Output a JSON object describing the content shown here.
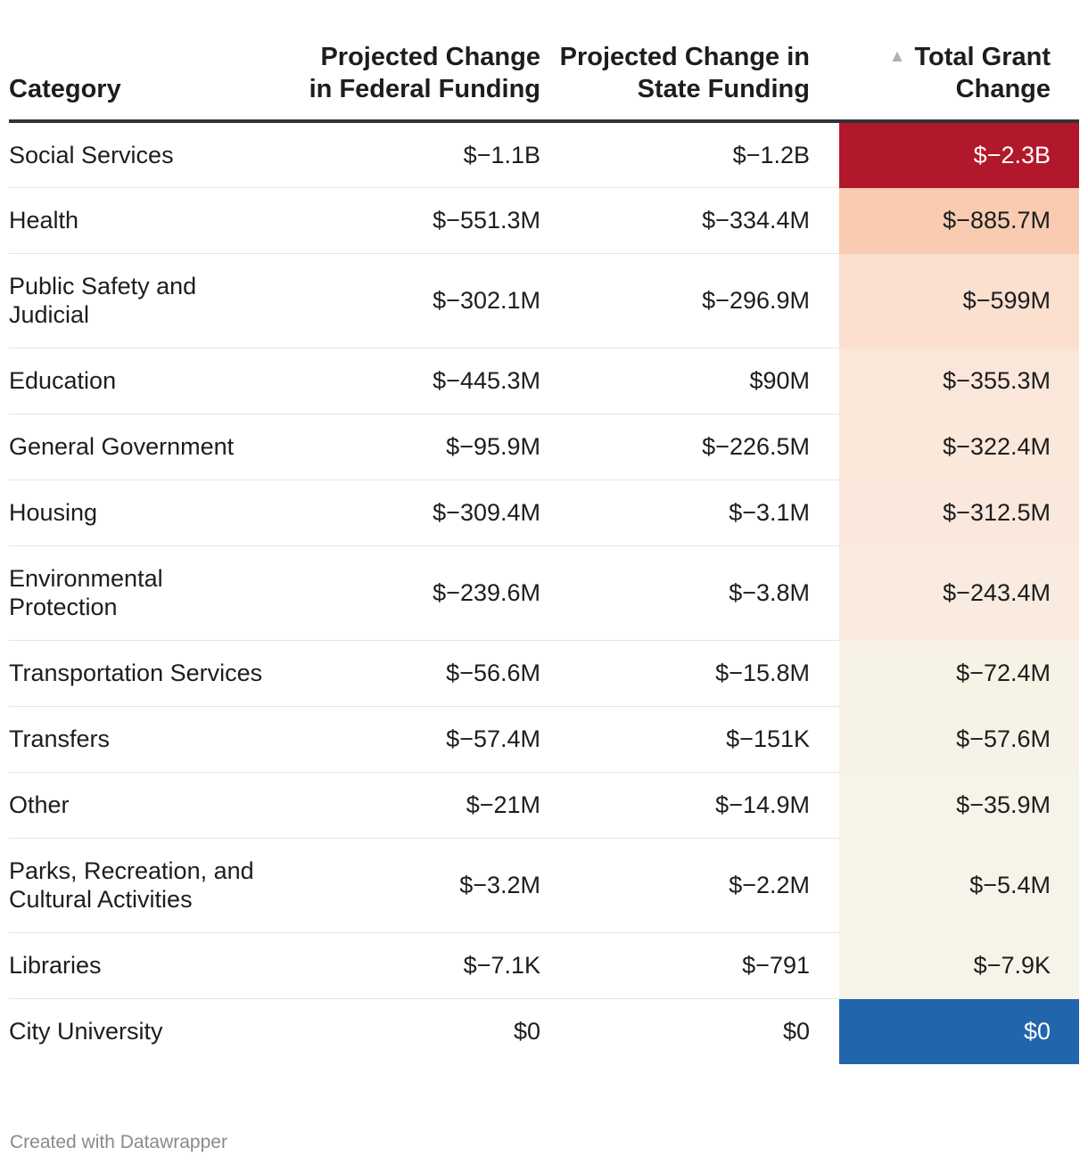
{
  "chart_data": {
    "type": "table",
    "headers": {
      "category": "Category",
      "federal": "Projected Change in Federal Funding",
      "state": "Projected Change in State Funding",
      "total": "Total Grant Change"
    },
    "sort": {
      "column": "total",
      "direction": "ascending",
      "icon": "sort-ascending-icon"
    },
    "rows": [
      {
        "category": "Social Services",
        "federal": "$−1.1B",
        "state": "$−1.2B",
        "total": "$−2.3B",
        "total_value": -2300000000,
        "shade": "#b2182b",
        "text_color": "#ffffff"
      },
      {
        "category": "Health",
        "federal": "$−551.3M",
        "state": "$−334.4M",
        "total": "$−885.7M",
        "total_value": -885700000,
        "shade": "#f9cbb0",
        "text_color": "#1d1d1d"
      },
      {
        "category": "Public Safety and Judicial",
        "federal": "$−302.1M",
        "state": "$−296.9M",
        "total": "$−599M",
        "total_value": -599000000,
        "shade": "#fbdfcf",
        "text_color": "#1d1d1d"
      },
      {
        "category": "Education",
        "federal": "$−445.3M",
        "state": "$90M",
        "total": "$−355.3M",
        "total_value": -355300000,
        "shade": "#fae7da",
        "text_color": "#1d1d1d"
      },
      {
        "category": "General Government",
        "federal": "$−95.9M",
        "state": "$−226.5M",
        "total": "$−322.4M",
        "total_value": -322400000,
        "shade": "#fae8db",
        "text_color": "#1d1d1d"
      },
      {
        "category": "Housing",
        "federal": "$−309.4M",
        "state": "$−3.1M",
        "total": "$−312.5M",
        "total_value": -312500000,
        "shade": "#fae8dc",
        "text_color": "#1d1d1d"
      },
      {
        "category": "Environmental Protection",
        "federal": "$−239.6M",
        "state": "$−3.8M",
        "total": "$−243.4M",
        "total_value": -243400000,
        "shade": "#f9ebdf",
        "text_color": "#1d1d1d"
      },
      {
        "category": "Transportation Services",
        "federal": "$−56.6M",
        "state": "$−15.8M",
        "total": "$−72.4M",
        "total_value": -72400000,
        "shade": "#f6f2e6",
        "text_color": "#1d1d1d"
      },
      {
        "category": "Transfers",
        "federal": "$−57.4M",
        "state": "$−151K",
        "total": "$−57.6M",
        "total_value": -57600000,
        "shade": "#f6f2e7",
        "text_color": "#1d1d1d"
      },
      {
        "category": "Other",
        "federal": "$−21M",
        "state": "$−14.9M",
        "total": "$−35.9M",
        "total_value": -35900000,
        "shade": "#f6f3e8",
        "text_color": "#1d1d1d"
      },
      {
        "category": "Parks, Recreation, and Cultural Activities",
        "federal": "$−3.2M",
        "state": "$−2.2M",
        "total": "$−5.4M",
        "total_value": -5400000,
        "shade": "#f6f4e9",
        "text_color": "#1d1d1d"
      },
      {
        "category": "Libraries",
        "federal": "$−7.1K",
        "state": "$−791",
        "total": "$−7.9K",
        "total_value": -7900,
        "shade": "#f6f4e9",
        "text_color": "#1d1d1d"
      },
      {
        "category": "City University",
        "federal": "$0",
        "state": "$0",
        "total": "$0",
        "total_value": 0,
        "shade": "#2166ac",
        "text_color": "#ffffff"
      }
    ]
  },
  "footer": "Created with Datawrapper"
}
